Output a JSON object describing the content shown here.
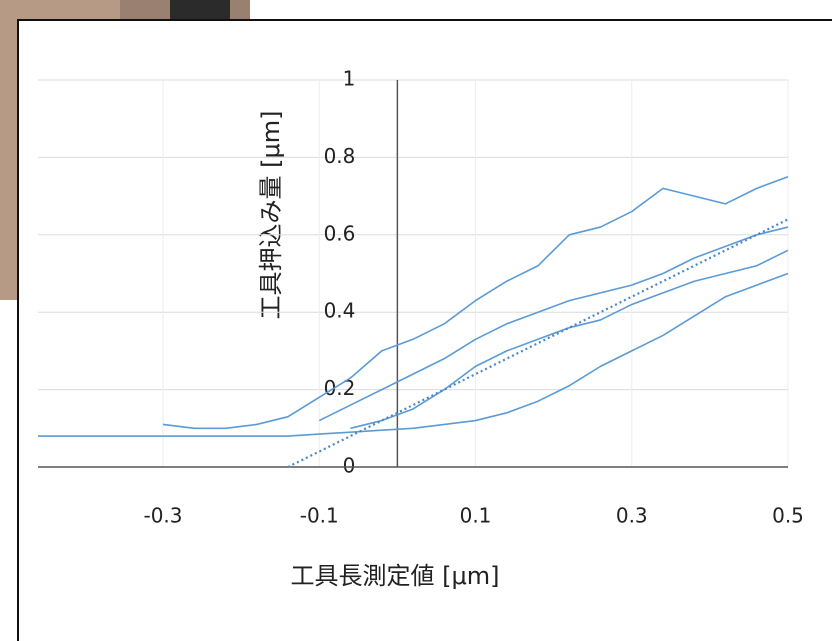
{
  "chart_data": {
    "type": "line",
    "x_label": "工具長測定値 [μm]",
    "y_label": "工具押込み量 [μm]",
    "x": [
      -0.46,
      -0.42,
      -0.38,
      -0.34,
      -0.3,
      -0.26,
      -0.22,
      -0.18,
      -0.14,
      -0.1,
      -0.06,
      -0.02,
      0.02,
      0.06,
      0.1,
      0.14,
      0.18,
      0.22,
      0.26,
      0.3,
      0.34,
      0.38,
      0.42,
      0.46,
      0.5
    ],
    "series": [
      {
        "color": "#5b9bd5",
        "values": [
          0.08,
          0.08,
          0.08,
          0.08,
          0.08,
          0.08,
          0.08,
          0.08,
          0.08,
          0.085,
          0.09,
          0.095,
          0.1,
          0.11,
          0.12,
          0.14,
          0.17,
          0.21,
          0.26,
          0.3,
          0.34,
          0.39,
          0.44,
          0.47,
          0.5
        ]
      },
      {
        "color": "#5b9bd5",
        "values": [
          null,
          null,
          null,
          null,
          0.11,
          0.1,
          0.1,
          0.11,
          0.13,
          0.18,
          0.23,
          0.3,
          0.33,
          0.37,
          0.43,
          0.48,
          0.52,
          0.6,
          0.62,
          0.66,
          0.72,
          0.7,
          0.68,
          0.72,
          0.75
        ]
      },
      {
        "color": "#5b9bd5",
        "values": [
          null,
          null,
          null,
          null,
          null,
          null,
          null,
          null,
          null,
          0.12,
          0.16,
          0.2,
          0.24,
          0.28,
          0.33,
          0.37,
          0.4,
          0.43,
          0.45,
          0.47,
          0.5,
          0.54,
          0.57,
          0.6,
          0.62
        ]
      },
      {
        "color": "#5b9bd5",
        "values": [
          null,
          null,
          null,
          null,
          null,
          null,
          null,
          null,
          null,
          null,
          0.1,
          0.12,
          0.15,
          0.2,
          0.26,
          0.3,
          0.33,
          0.36,
          0.38,
          0.42,
          0.45,
          0.48,
          0.5,
          0.52,
          0.56
        ]
      },
      {
        "color": "#4a86c8",
        "dashed": true,
        "values": [
          null,
          null,
          null,
          null,
          null,
          null,
          null,
          null,
          0,
          0.04,
          0.08,
          0.12,
          0.16,
          0.2,
          0.24,
          0.28,
          0.32,
          0.36,
          0.4,
          0.44,
          0.48,
          0.52,
          0.56,
          0.6,
          0.64
        ]
      }
    ],
    "xlim": [
      -0.46,
      0.5
    ],
    "ylim": [
      0,
      1
    ],
    "xticks": [
      -0.3,
      -0.1,
      0.1,
      0.3,
      0.5
    ],
    "yticks": [
      0,
      0.2,
      0.4,
      0.6,
      0.8,
      1
    ],
    "grid": true
  }
}
